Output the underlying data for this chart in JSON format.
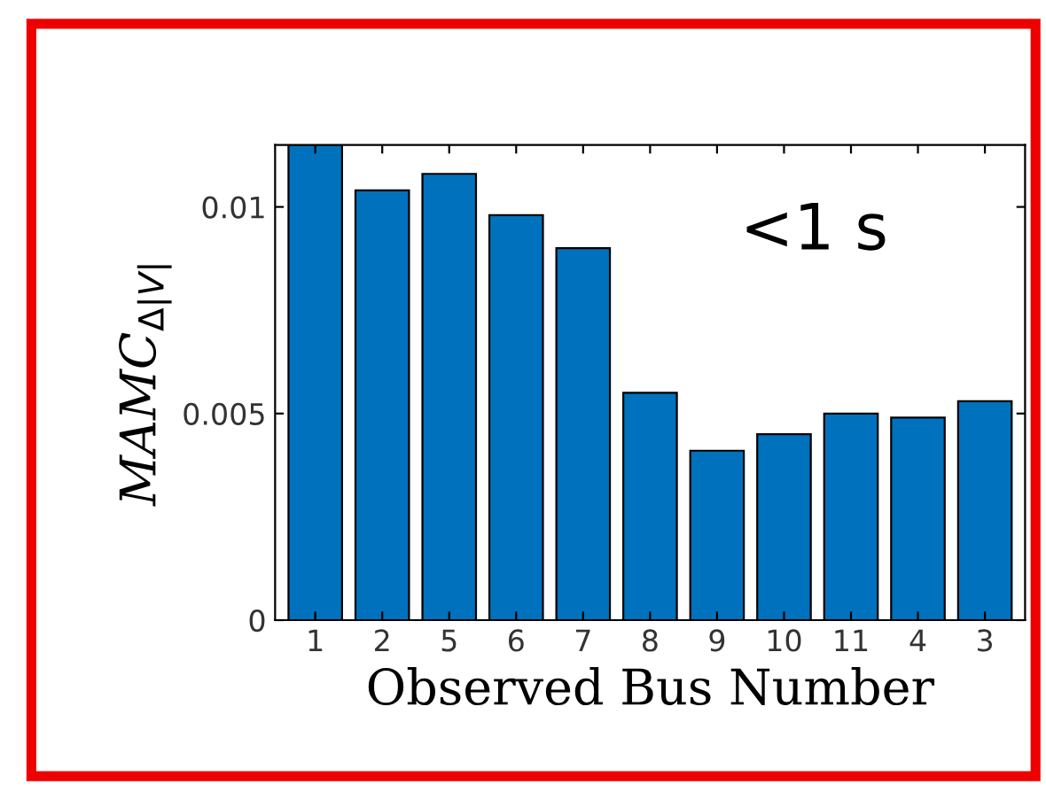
{
  "chart_data": {
    "type": "bar",
    "categories": [
      "1",
      "2",
      "5",
      "6",
      "7",
      "8",
      "9",
      "10",
      "11",
      "4",
      "3"
    ],
    "values": [
      0.0115,
      0.0104,
      0.0108,
      0.0098,
      0.009,
      0.0055,
      0.0041,
      0.0045,
      0.005,
      0.0049,
      0.0053
    ],
    "color": "#0072bd",
    "ylim": [
      0,
      0.0115
    ],
    "yticks": [
      0,
      0.005,
      {
        "value": 0.01,
        "label": "0.01"
      }
    ],
    "xlabel": "Observed Bus Number",
    "ylabel": "MAMC$_{Δ|V|}$",
    "annotations": [
      "<1 s"
    ],
    "grid": false
  }
}
